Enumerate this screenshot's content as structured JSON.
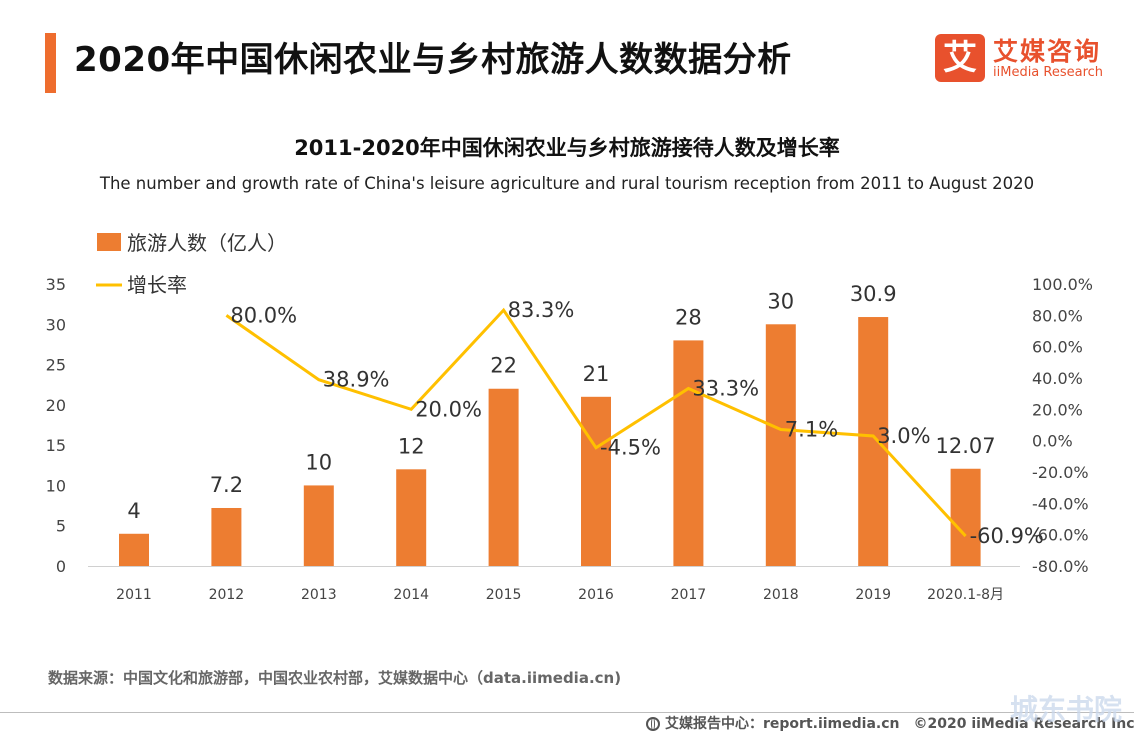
{
  "header": {
    "title": "2020年中国休闲农业与乡村旅游人数数据分析",
    "logo_mark": "艾",
    "logo_cn": "艾媒咨询",
    "logo_en": "iiMedia Research"
  },
  "chart_data": {
    "type": "bar",
    "title": "2011-2020年中国休闲农业与乡村旅游接待人数及增长率",
    "subtitle": "The number and growth rate of China's leisure agriculture and rural tourism reception from 2011 to August 2020",
    "categories": [
      "2011",
      "2012",
      "2013",
      "2014",
      "2015",
      "2016",
      "2017",
      "2018",
      "2019",
      "2020.1-8月"
    ],
    "series": [
      {
        "name": "旅游人数（亿人）",
        "type": "bar",
        "axis": "left",
        "color": "#ed7d31",
        "values": [
          4,
          7.2,
          10,
          12,
          22,
          21,
          28,
          30,
          30.9,
          12.07
        ],
        "labels": [
          "4",
          "7.2",
          "10",
          "12",
          "22",
          "21",
          "28",
          "30",
          "30.9",
          "12.07"
        ]
      },
      {
        "name": "增长率",
        "type": "line",
        "axis": "right",
        "color": "#ffc000",
        "values": [
          null,
          80.0,
          38.9,
          20.0,
          83.3,
          -4.5,
          33.3,
          7.1,
          3.0,
          -60.9
        ],
        "labels": [
          "",
          "80.0%",
          "38.9%",
          "20.0%",
          "83.3%",
          "-4.5%",
          "33.3%",
          "7.1%",
          "3.0%",
          "-60.9%"
        ]
      }
    ],
    "y_left": {
      "min": 0,
      "max": 35,
      "ticks": [
        "0",
        "5",
        "10",
        "15",
        "20",
        "25",
        "30",
        "35"
      ]
    },
    "y_right": {
      "min": -80,
      "max": 100,
      "ticks": [
        "-80.0%",
        "-60.0%",
        "-40.0%",
        "-20.0%",
        "0.0%",
        "20.0%",
        "40.0%",
        "60.0%",
        "80.0%",
        "100.0%"
      ]
    },
    "legend_position": "top-left",
    "grid": false
  },
  "footer": {
    "source": "数据来源：中国文化和旅游部，中国农业农村部，艾媒数据中心（data.iimedia.cn)",
    "report_label": "艾媒报告中心：report.iimedia.cn",
    "copyright": "©2020  iiMedia Research  Inc"
  },
  "watermark": "城东书院"
}
